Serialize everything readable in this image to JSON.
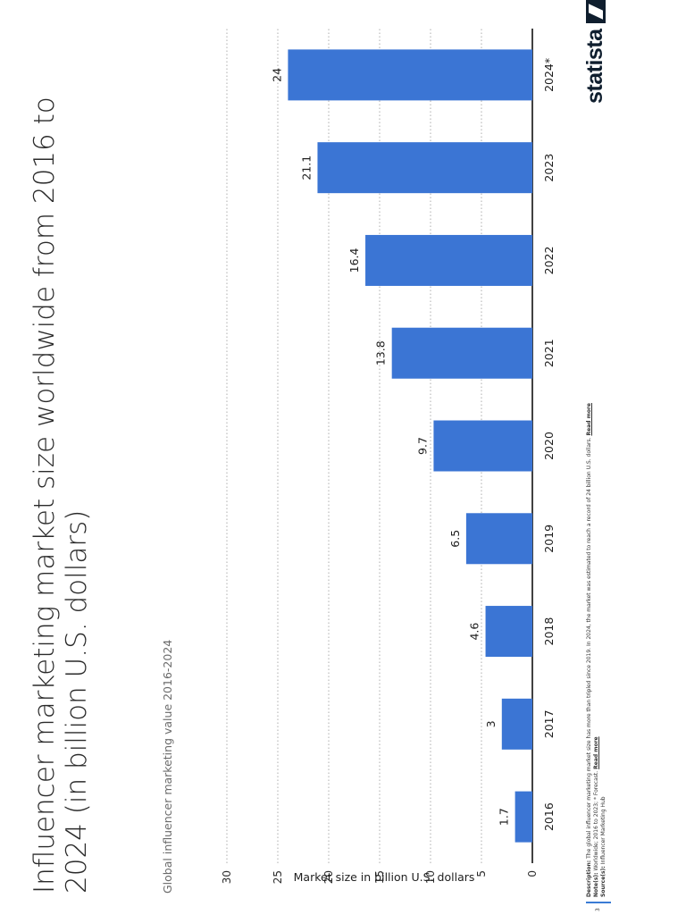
{
  "chart_data": {
    "type": "bar",
    "title": "Influencer marketing market size worldwide from 2016 to 2024 (in billion U.S. dollars)",
    "subtitle": "Global influencer marketing value 2016-2024",
    "categories": [
      "2016",
      "2017",
      "2018",
      "2019",
      "2020",
      "2021",
      "2022",
      "2023",
      "2024*"
    ],
    "values": [
      1.7,
      3,
      4.6,
      6.5,
      9.7,
      13.8,
      16.4,
      21.1,
      24
    ],
    "value_labels": [
      "1.7",
      "3",
      "4.6",
      "6.5",
      "9.7",
      "13.8",
      "16.4",
      "21.1",
      "24"
    ],
    "xlabel": "",
    "ylabel": "Market size in billion U.S. dollars",
    "ylim": [
      0,
      30
    ],
    "yticks": [
      0,
      5,
      10,
      15,
      20,
      25,
      30
    ],
    "grid": true,
    "bar_color": "#3b75d4"
  },
  "footer": {
    "page_number": "3",
    "description_label": "Description:",
    "description_text": " The global influencer marketing market size has more than tripled since 2019. In 2024, the market was estimated to reach a record of 24 billion U.S. dollars. ",
    "read_more_1": "Read more",
    "notes_label": "Note(s):",
    "notes_text": " Worldwide; 2016 to 2023; * Forecast. ",
    "read_more_2": "Read more",
    "sources_label": "Source(s):",
    "sources_text": " Influencer Marketing Hub"
  },
  "logo": {
    "wordmark": "statista",
    "icon": "statista-logo-icon"
  }
}
